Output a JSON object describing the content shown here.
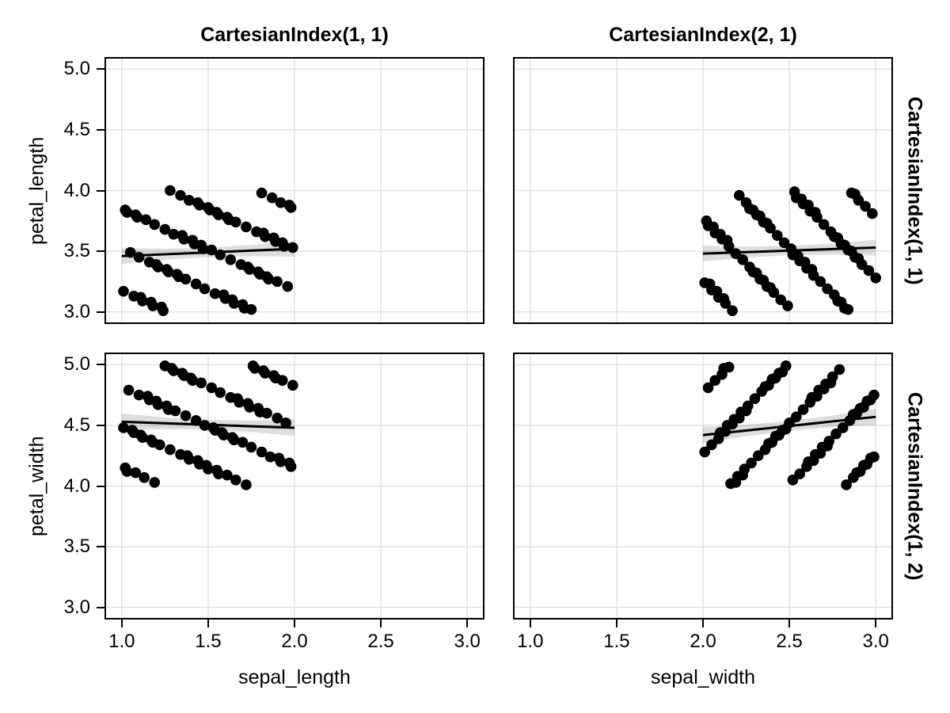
{
  "figure": {
    "background": "#ffffff"
  },
  "style": {
    "marker_color": "#000000",
    "marker_radius": 6.8,
    "line_color": "#000000",
    "line_width": 3,
    "band_color": "#000000",
    "band_opacity": 0.13,
    "grid_color": "#e2e2e2",
    "spine_color": "#000000"
  },
  "facets": {
    "col_titles": [
      "CartesianIndex(1, 1)",
      "CartesianIndex(2, 1)"
    ],
    "row_titles": [
      "CartesianIndex(1, 1)",
      "CartesianIndex(1, 2)"
    ]
  },
  "axes": {
    "xlim": [
      0.9,
      3.1
    ],
    "ylim": [
      2.9,
      5.1
    ],
    "x_ticks": [
      1.0,
      1.5,
      2.0,
      2.5,
      3.0
    ],
    "x_tick_labels": [
      "1.0",
      "1.5",
      "2.0",
      "2.5",
      "3.0"
    ],
    "y_ticks": [
      3.0,
      3.5,
      4.0,
      4.5,
      5.0
    ],
    "y_tick_labels": [
      "3.0",
      "3.5",
      "4.0",
      "4.5",
      "5.0"
    ],
    "x_labels": [
      "sepal_length",
      "sepal_width"
    ],
    "y_labels": [
      "petal_length",
      "petal_width"
    ]
  },
  "chart_data": {
    "type": "scatter",
    "layout": "2x2 facet grid with linear fit and confidence band",
    "grid": true,
    "legend": "none",
    "panels": [
      {
        "row": 0,
        "col": 0,
        "col_title": "CartesianIndex(1, 1)",
        "row_title": "CartesianIndex(1, 1)",
        "x_label": "sepal_length",
        "y_label": "petal_length",
        "x_range": [
          1.0,
          2.0
        ],
        "y_range": [
          3.0,
          4.0
        ],
        "fit": {
          "x": [
            1.0,
            2.0
          ],
          "y": [
            3.46,
            3.52
          ],
          "band_halfwidth": [
            0.065,
            0.046,
            0.038,
            0.046,
            0.065
          ]
        },
        "x": [
          1.62,
          1.24,
          1.85,
          1.47,
          1.09,
          1.71,
          1.33,
          1.94,
          1.56,
          1.18,
          1.8,
          1.42,
          1.03,
          1.65,
          1.27,
          1.89,
          1.51,
          1.12,
          1.74,
          1.36,
          1.98,
          1.6,
          1.21,
          1.83,
          1.45,
          1.07,
          1.69,
          1.3,
          1.92,
          1.54,
          1.16,
          1.78,
          1.39,
          1.01,
          1.63,
          1.25,
          1.87,
          1.48,
          1.1,
          1.72,
          1.34,
          1.96,
          1.57,
          1.19,
          1.81,
          1.43,
          1.05,
          1.66,
          1.28,
          1.9,
          1.52,
          1.14,
          1.75,
          1.37,
          1.99,
          1.61,
          1.23,
          1.84,
          1.46,
          1.08,
          1.7,
          1.32,
          1.93,
          1.55,
          1.17,
          1.79,
          1.41,
          1.02,
          1.64,
          1.26,
          1.88,
          1.5,
          1.11,
          1.73,
          1.35,
          1.97,
          1.59,
          1.2,
          1.82,
          1.44
        ],
        "y": [
          3.76,
          3.01,
          3.27,
          3.52,
          3.78,
          3.03,
          3.29,
          3.54,
          3.8,
          3.05,
          3.31,
          3.56,
          3.82,
          3.07,
          3.33,
          3.58,
          3.84,
          3.09,
          3.35,
          3.6,
          3.86,
          3.11,
          3.37,
          3.62,
          3.88,
          3.13,
          3.39,
          3.64,
          3.9,
          3.15,
          3.41,
          3.66,
          3.92,
          3.17,
          3.43,
          3.68,
          3.94,
          3.19,
          3.45,
          3.7,
          3.96,
          3.21,
          3.47,
          3.72,
          3.98,
          3.23,
          3.49,
          3.74,
          4.0,
          3.25,
          3.51,
          3.76,
          3.02,
          3.27,
          3.53,
          3.78,
          3.04,
          3.29,
          3.55,
          3.8,
          3.06,
          3.31,
          3.57,
          3.82,
          3.08,
          3.33,
          3.59,
          3.84,
          3.1,
          3.35,
          3.61,
          3.86,
          3.12,
          3.37,
          3.63,
          3.88,
          3.14,
          3.39,
          3.65,
          3.9
        ]
      },
      {
        "row": 0,
        "col": 1,
        "col_title": "CartesianIndex(2, 1)",
        "row_title": "CartesianIndex(1, 1)",
        "x_label": "sepal_width",
        "y_label": "petal_length",
        "x_range": [
          2.0,
          3.0
        ],
        "y_range": [
          3.0,
          4.0
        ],
        "fit": {
          "x": [
            2.0,
            3.0
          ],
          "y": [
            3.48,
            3.53
          ],
          "band_halfwidth": [
            0.065,
            0.046,
            0.038,
            0.046,
            0.065
          ]
        },
        "x": [
          2.76,
          2.01,
          2.27,
          2.52,
          2.78,
          2.03,
          2.29,
          2.54,
          2.8,
          2.05,
          2.31,
          2.56,
          2.82,
          2.07,
          2.33,
          2.58,
          2.84,
          2.09,
          2.35,
          2.6,
          2.86,
          2.11,
          2.37,
          2.62,
          2.88,
          2.13,
          2.39,
          2.64,
          2.9,
          2.15,
          2.41,
          2.66,
          2.92,
          2.17,
          2.43,
          2.68,
          2.94,
          2.19,
          2.45,
          2.7,
          2.96,
          2.21,
          2.47,
          2.72,
          2.98,
          2.23,
          2.49,
          2.74,
          3.0,
          2.25,
          2.51,
          2.76,
          2.02,
          2.27,
          2.53,
          2.78,
          2.04,
          2.29,
          2.55,
          2.8,
          2.06,
          2.31,
          2.57,
          2.82,
          2.08,
          2.33,
          2.59,
          2.84,
          2.1,
          2.35,
          2.61,
          2.86,
          2.12,
          2.37,
          2.63,
          2.88,
          2.14,
          2.39,
          2.65,
          2.9
        ],
        "y": [
          3.62,
          3.24,
          3.85,
          3.47,
          3.09,
          3.71,
          3.33,
          3.94,
          3.56,
          3.18,
          3.8,
          3.42,
          3.03,
          3.65,
          3.27,
          3.89,
          3.51,
          3.12,
          3.74,
          3.36,
          3.98,
          3.6,
          3.21,
          3.83,
          3.45,
          3.07,
          3.69,
          3.3,
          3.92,
          3.54,
          3.16,
          3.78,
          3.39,
          3.01,
          3.63,
          3.25,
          3.87,
          3.48,
          3.1,
          3.72,
          3.34,
          3.96,
          3.57,
          3.19,
          3.81,
          3.43,
          3.05,
          3.66,
          3.28,
          3.9,
          3.52,
          3.14,
          3.75,
          3.37,
          3.99,
          3.61,
          3.23,
          3.84,
          3.46,
          3.08,
          3.7,
          3.32,
          3.93,
          3.55,
          3.17,
          3.79,
          3.41,
          3.02,
          3.64,
          3.26,
          3.88,
          3.5,
          3.11,
          3.73,
          3.35,
          3.97,
          3.59,
          3.2,
          3.82,
          3.44
        ]
      },
      {
        "row": 1,
        "col": 0,
        "col_title": "CartesianIndex(1, 1)",
        "row_title": "CartesianIndex(1, 2)",
        "x_label": "sepal_length",
        "y_label": "petal_width",
        "x_range": [
          1.0,
          2.0
        ],
        "y_range": [
          4.0,
          5.0
        ],
        "fit": {
          "x": [
            1.0,
            2.0
          ],
          "y": [
            4.53,
            4.48
          ],
          "band_halfwidth": [
            0.068,
            0.048,
            0.04,
            0.048,
            0.068
          ]
        },
        "x": [
          1.38,
          1.76,
          1.15,
          1.53,
          1.91,
          1.29,
          1.67,
          1.06,
          1.44,
          1.82,
          1.2,
          1.58,
          1.97,
          1.35,
          1.73,
          1.11,
          1.49,
          1.88,
          1.26,
          1.64,
          1.02,
          1.4,
          1.79,
          1.17,
          1.55,
          1.93,
          1.31,
          1.7,
          1.08,
          1.46,
          1.84,
          1.22,
          1.61,
          1.99,
          1.37,
          1.75,
          1.13,
          1.52,
          1.9,
          1.28,
          1.66,
          1.04,
          1.43,
          1.81,
          1.19,
          1.57,
          1.95,
          1.34,
          1.72,
          1.1,
          1.48,
          1.86,
          1.25,
          1.63,
          1.01,
          1.39,
          1.77,
          1.16,
          1.54,
          1.92,
          1.3,
          1.68,
          1.07,
          1.45,
          1.83,
          1.21,
          1.59,
          1.98,
          1.36,
          1.74,
          1.12,
          1.5,
          1.89,
          1.27,
          1.65,
          1.03,
          1.41,
          1.8,
          1.18,
          1.56
        ],
        "y": [
          4.25,
          4.99,
          4.74,
          4.48,
          4.23,
          4.97,
          4.72,
          4.46,
          4.21,
          4.95,
          4.7,
          4.44,
          4.19,
          4.93,
          4.68,
          4.42,
          4.17,
          4.91,
          4.66,
          4.4,
          4.15,
          4.89,
          4.64,
          4.38,
          4.13,
          4.87,
          4.62,
          4.36,
          4.11,
          4.85,
          4.6,
          4.34,
          4.09,
          4.83,
          4.58,
          4.32,
          4.07,
          4.81,
          4.56,
          4.3,
          4.05,
          4.79,
          4.54,
          4.28,
          4.03,
          4.77,
          4.52,
          4.26,
          4.01,
          4.75,
          4.5,
          4.24,
          4.99,
          4.73,
          4.48,
          4.22,
          4.97,
          4.71,
          4.46,
          4.2,
          4.95,
          4.69,
          4.44,
          4.18,
          4.93,
          4.67,
          4.42,
          4.16,
          4.91,
          4.65,
          4.4,
          4.14,
          4.89,
          4.63,
          4.38,
          4.12,
          4.87,
          4.61,
          4.36,
          4.1
        ]
      },
      {
        "row": 1,
        "col": 1,
        "col_title": "CartesianIndex(2, 1)",
        "row_title": "CartesianIndex(1, 2)",
        "x_label": "sepal_width",
        "y_label": "petal_width",
        "x_range": [
          2.0,
          3.0
        ],
        "y_range": [
          4.0,
          5.0
        ],
        "fit": {
          "x": [
            2.0,
            3.0
          ],
          "y": [
            4.42,
            4.57
          ],
          "band_halfwidth": [
            0.068,
            0.048,
            0.04,
            0.048,
            0.068
          ]
        },
        "x": [
          2.25,
          2.99,
          2.74,
          2.48,
          2.23,
          2.97,
          2.72,
          2.46,
          2.21,
          2.95,
          2.7,
          2.44,
          2.19,
          2.93,
          2.68,
          2.42,
          2.17,
          2.91,
          2.66,
          2.4,
          2.15,
          2.89,
          2.64,
          2.38,
          2.13,
          2.87,
          2.62,
          2.36,
          2.11,
          2.85,
          2.6,
          2.34,
          2.09,
          2.83,
          2.58,
          2.32,
          2.07,
          2.81,
          2.56,
          2.3,
          2.05,
          2.79,
          2.54,
          2.28,
          2.03,
          2.77,
          2.52,
          2.26,
          2.01,
          2.75,
          2.5,
          2.24,
          2.99,
          2.73,
          2.48,
          2.22,
          2.97,
          2.71,
          2.46,
          2.2,
          2.95,
          2.69,
          2.44,
          2.18,
          2.93,
          2.67,
          2.42,
          2.16,
          2.91,
          2.65,
          2.4,
          2.14,
          2.89,
          2.63,
          2.38,
          2.12,
          2.87,
          2.61,
          2.36,
          2.1
        ],
        "y": [
          4.62,
          4.24,
          4.85,
          4.47,
          4.09,
          4.71,
          4.33,
          4.94,
          4.56,
          4.18,
          4.8,
          4.42,
          4.03,
          4.65,
          4.27,
          4.89,
          4.51,
          4.12,
          4.74,
          4.36,
          4.98,
          4.6,
          4.21,
          4.83,
          4.45,
          4.07,
          4.69,
          4.3,
          4.92,
          4.54,
          4.16,
          4.78,
          4.39,
          4.01,
          4.63,
          4.25,
          4.87,
          4.48,
          4.1,
          4.72,
          4.34,
          4.96,
          4.57,
          4.19,
          4.81,
          4.43,
          4.05,
          4.66,
          4.28,
          4.9,
          4.52,
          4.14,
          4.75,
          4.37,
          4.99,
          4.61,
          4.23,
          4.84,
          4.46,
          4.08,
          4.7,
          4.32,
          4.93,
          4.55,
          4.17,
          4.79,
          4.41,
          4.02,
          4.64,
          4.26,
          4.88,
          4.5,
          4.11,
          4.73,
          4.35,
          4.97,
          4.59,
          4.2,
          4.82,
          4.44
        ]
      }
    ]
  }
}
